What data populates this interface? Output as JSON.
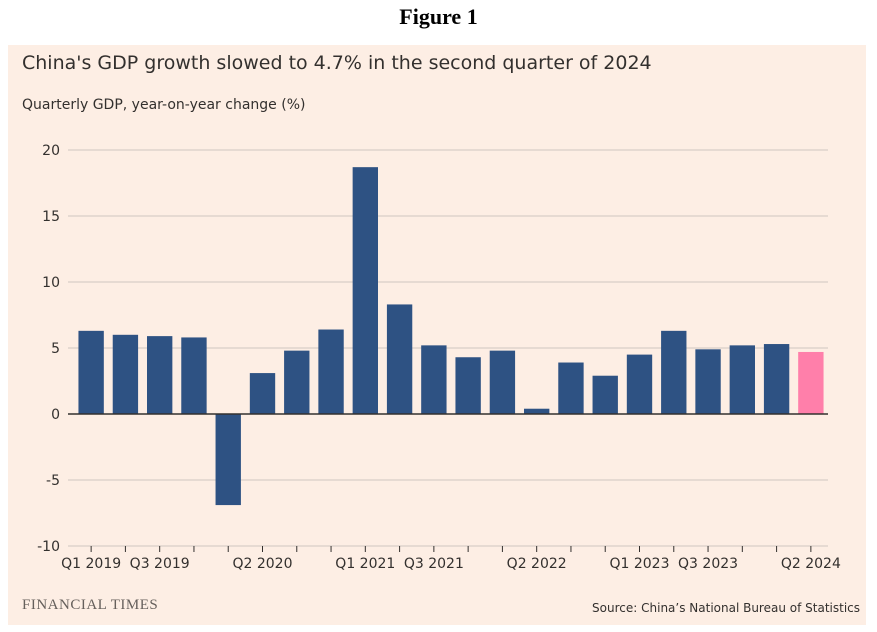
{
  "figure_title": "Figure 1",
  "footer": {
    "logo": "FINANCIAL TIMES",
    "source": "Source: China’s National Bureau of Statistics"
  },
  "colors": {
    "background": "#fdeee4",
    "bar": "#2e5283",
    "highlight": "#ff7faa",
    "grid": "#cfc6bf",
    "axis": "#33302e"
  },
  "chart_data": {
    "type": "bar",
    "title": "China's GDP growth slowed to 4.7% in the second quarter of 2024",
    "ylabel": "Quarterly GDP, year-on-year change (%)",
    "xlabel": "",
    "ylim": [
      -10,
      20
    ],
    "yticks": [
      20,
      15,
      10,
      5,
      0,
      -5,
      -10
    ],
    "grid": true,
    "categories": [
      "Q1 2019",
      "Q2 2019",
      "Q3 2019",
      "Q4 2019",
      "Q1 2020",
      "Q2 2020",
      "Q3 2020",
      "Q4 2020",
      "Q1 2021",
      "Q2 2021",
      "Q3 2021",
      "Q4 2021",
      "Q1 2022",
      "Q2 2022",
      "Q3 2022",
      "Q4 2022",
      "Q1 2023",
      "Q2 2023",
      "Q3 2023",
      "Q4 2023",
      "Q1 2024",
      "Q2 2024"
    ],
    "values": [
      6.3,
      6.0,
      5.9,
      5.8,
      -6.9,
      3.1,
      4.8,
      6.4,
      18.7,
      8.3,
      5.2,
      4.3,
      4.8,
      0.4,
      3.9,
      2.9,
      4.5,
      6.3,
      4.9,
      5.2,
      5.3,
      4.7
    ],
    "highlight_index": 21,
    "xtick_labels": [
      {
        "index": 0,
        "label": "Q1 2019"
      },
      {
        "index": 2,
        "label": "Q3 2019"
      },
      {
        "index": 5,
        "label": "Q2 2020"
      },
      {
        "index": 8,
        "label": "Q1 2021"
      },
      {
        "index": 10,
        "label": "Q3 2021"
      },
      {
        "index": 13,
        "label": "Q2 2022"
      },
      {
        "index": 16,
        "label": "Q1 2023"
      },
      {
        "index": 18,
        "label": "Q3 2023"
      },
      {
        "index": 21,
        "label": "Q2 2024"
      }
    ]
  }
}
